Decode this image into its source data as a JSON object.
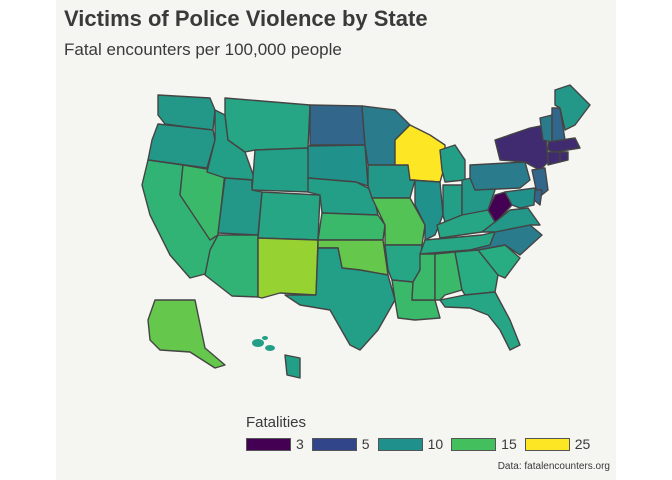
{
  "title": "Victims of Police Violence by State",
  "subtitle": "Fatal encounters per 100,000 people",
  "caption": "Data: fatalencounters.org",
  "legend": {
    "title": "Fatalities",
    "items": [
      {
        "label": "3",
        "color": "#440154"
      },
      {
        "label": "5",
        "color": "#31468a"
      },
      {
        "label": "10",
        "color": "#20908c"
      },
      {
        "label": "15",
        "color": "#44bf5e"
      },
      {
        "label": "25",
        "color": "#fde725"
      }
    ]
  },
  "chart_data": {
    "type": "choropleth",
    "region": "United States",
    "value_units": "fatal encounters per 100,000 people",
    "scale": "viridis",
    "legend_breaks": [
      3,
      5,
      10,
      15,
      25
    ],
    "states": {
      "WA": 9,
      "OR": 9,
      "CA": 13,
      "NV": 14,
      "ID": 10,
      "MT": 11,
      "WY": 10,
      "UT": 9,
      "AZ": 13,
      "CO": 11,
      "NM": 20,
      "ND": 6,
      "SD": 8,
      "NE": 10,
      "KS": 14,
      "OK": 17,
      "TX": 10,
      "MN": 7,
      "IA": 9,
      "MO": 16,
      "AR": 11,
      "LA": 14,
      "WI": 25,
      "IL": 8,
      "MI": 10,
      "IN": 10,
      "OH": 9,
      "KY": 11,
      "TN": 11,
      "MS": 14,
      "AL": 14,
      "GA": 12,
      "FL": 11,
      "SC": 12,
      "NC": 7,
      "VA": 9,
      "WV": 3,
      "PA": 7,
      "NY": 4,
      "VT": 7,
      "NH": 6,
      "ME": 9,
      "MA": 4,
      "CT": 4,
      "RI": 4,
      "NJ": 6,
      "DE": 6,
      "MD": 8,
      "AK": 17,
      "HI": 10
    }
  }
}
